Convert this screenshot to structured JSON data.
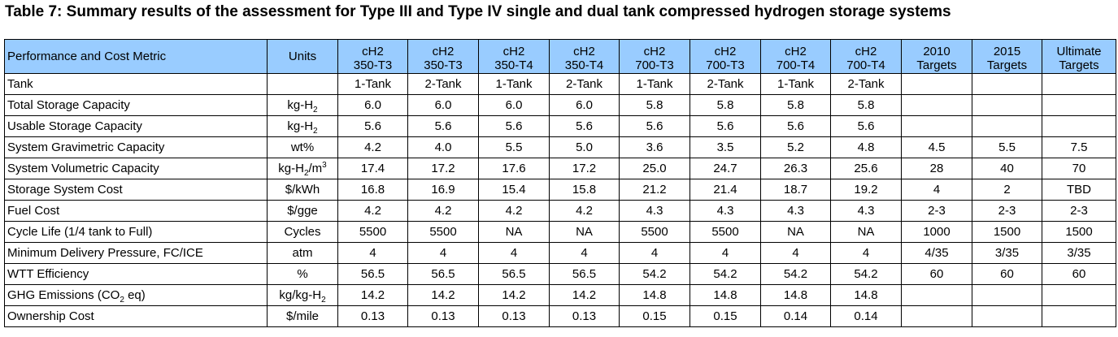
{
  "title": "Table 7:  Summary results of the assessment for Type III and Type IV single and dual tank compressed hydrogen storage systems",
  "header": {
    "metric": "Performance and Cost Metric",
    "units": "Units",
    "columns": [
      {
        "line1": "cH2",
        "line2": "350-T3"
      },
      {
        "line1": "cH2",
        "line2": "350-T3"
      },
      {
        "line1": "cH2",
        "line2": "350-T4"
      },
      {
        "line1": "cH2",
        "line2": "350-T4"
      },
      {
        "line1": "cH2",
        "line2": "700-T3"
      },
      {
        "line1": "cH2",
        "line2": "700-T3"
      },
      {
        "line1": "cH2",
        "line2": "700-T4"
      },
      {
        "line1": "cH2",
        "line2": "700-T4"
      },
      {
        "line1": "2010",
        "line2": "Targets"
      },
      {
        "line1": "2015",
        "line2": "Targets"
      },
      {
        "line1": "Ultimate",
        "line2": "Targets"
      }
    ]
  },
  "rows": [
    {
      "metric": "Tank",
      "units": "",
      "values": [
        "1-Tank",
        "2-Tank",
        "1-Tank",
        "2-Tank",
        "1-Tank",
        "2-Tank",
        "1-Tank",
        "2-Tank",
        "",
        "",
        ""
      ]
    },
    {
      "metric": "Total Storage Capacity",
      "units": "kg-H<sub>2</sub>",
      "values": [
        "6.0",
        "6.0",
        "6.0",
        "6.0",
        "5.8",
        "5.8",
        "5.8",
        "5.8",
        "",
        "",
        ""
      ]
    },
    {
      "metric": "Usable Storage Capacity",
      "units": "kg-H<sub>2</sub>",
      "values": [
        "5.6",
        "5.6",
        "5.6",
        "5.6",
        "5.6",
        "5.6",
        "5.6",
        "5.6",
        "",
        "",
        ""
      ]
    },
    {
      "metric": "System Gravimetric Capacity",
      "units": "wt%",
      "values": [
        "4.2",
        "4.0",
        "5.5",
        "5.0",
        "3.6",
        "3.5",
        "5.2",
        "4.8",
        "4.5",
        "5.5",
        "7.5"
      ]
    },
    {
      "metric": "System Volumetric Capacity",
      "units": "kg-H<sub>2</sub>/m<sup>3</sup>",
      "values": [
        "17.4",
        "17.2",
        "17.6",
        "17.2",
        "25.0",
        "24.7",
        "26.3",
        "25.6",
        "28",
        "40",
        "70"
      ]
    },
    {
      "metric": "Storage System Cost",
      "units": "$/kWh",
      "values": [
        "16.8",
        "16.9",
        "15.4",
        "15.8",
        "21.2",
        "21.4",
        "18.7",
        "19.2",
        "4",
        "2",
        "TBD"
      ]
    },
    {
      "metric": "Fuel Cost",
      "units": "$/gge",
      "values": [
        "4.2",
        "4.2",
        "4.2",
        "4.2",
        "4.3",
        "4.3",
        "4.3",
        "4.3",
        "2-3",
        "2-3",
        "2-3"
      ]
    },
    {
      "metric": "Cycle Life (1/4 tank to Full)",
      "units": "Cycles",
      "values": [
        "5500",
        "5500",
        "NA",
        "NA",
        "5500",
        "5500",
        "NA",
        "NA",
        "1000",
        "1500",
        "1500"
      ]
    },
    {
      "metric": "Minimum Delivery Pressure, FC/ICE",
      "units": "atm",
      "values": [
        "4",
        "4",
        "4",
        "4",
        "4",
        "4",
        "4",
        "4",
        "4/35",
        "3/35",
        "3/35"
      ]
    },
    {
      "metric": "WTT Efficiency",
      "units": "%",
      "values": [
        "56.5",
        "56.5",
        "56.5",
        "56.5",
        "54.2",
        "54.2",
        "54.2",
        "54.2",
        "60",
        "60",
        "60"
      ]
    },
    {
      "metric": "GHG Emissions (CO<sub>2</sub> eq)",
      "units": "kg/kg-H<sub>2</sub>",
      "values": [
        "14.2",
        "14.2",
        "14.2",
        "14.2",
        "14.8",
        "14.8",
        "14.8",
        "14.8",
        "",
        "",
        ""
      ]
    },
    {
      "metric": "Ownership Cost",
      "units": "$/mile",
      "values": [
        "0.13",
        "0.13",
        "0.13",
        "0.13",
        "0.15",
        "0.15",
        "0.14",
        "0.14",
        "",
        "",
        ""
      ]
    }
  ]
}
